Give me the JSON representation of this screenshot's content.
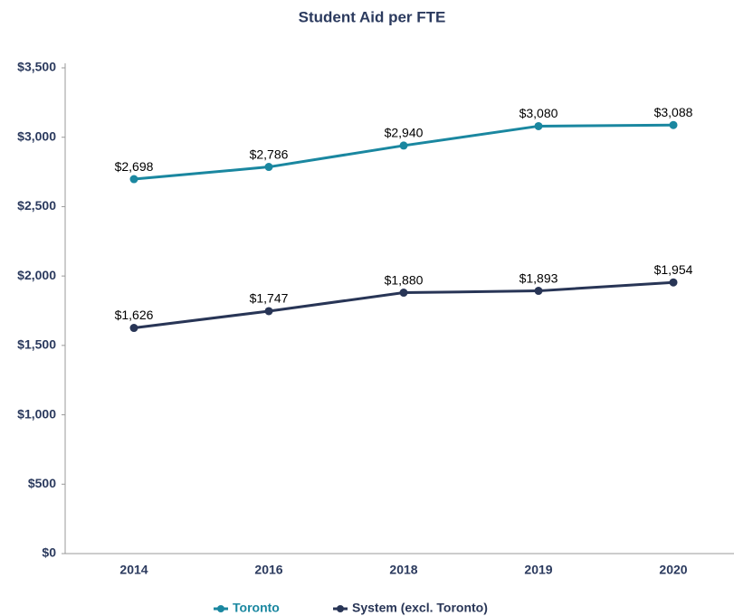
{
  "chart_data": {
    "type": "line",
    "title": "Student Aid per FTE",
    "categories": [
      "2014",
      "2016",
      "2018",
      "2019",
      "2020"
    ],
    "series": [
      {
        "name": "Toronto",
        "color": "#1a87a0",
        "values": [
          2698,
          2786,
          2940,
          3080,
          3088
        ],
        "value_labels": [
          "$2,698",
          "$2,786",
          "$2,940",
          "$3,080",
          "$3,088"
        ]
      },
      {
        "name": "System (excl. Toronto)",
        "color": "#283556",
        "values": [
          1626,
          1747,
          1880,
          1893,
          1954
        ],
        "value_labels": [
          "$1,626",
          "$1,747",
          "$1,880",
          "$1,893",
          "$1,954"
        ]
      }
    ],
    "ylim": [
      0,
      3500
    ],
    "yticks": [
      {
        "value": 0,
        "label": "$0"
      },
      {
        "value": 500,
        "label": "$500"
      },
      {
        "value": 1000,
        "label": "$1,000"
      },
      {
        "value": 1500,
        "label": "$1,500"
      },
      {
        "value": 2000,
        "label": "$2,000"
      },
      {
        "value": 2500,
        "label": "$2,500"
      },
      {
        "value": 3000,
        "label": "$3,000"
      },
      {
        "value": 3500,
        "label": "$3,500"
      }
    ],
    "grid": false,
    "legend": "bottom"
  }
}
